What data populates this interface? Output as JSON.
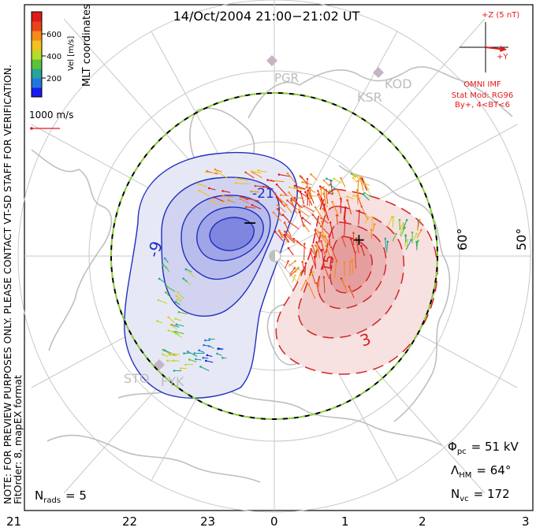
{
  "title": "14/Oct/2004 21:00−21:02 UT",
  "colorbar": {
    "unit_label": "Vel [m/s]",
    "ticks": [
      "200",
      "400",
      "600"
    ],
    "colors": [
      "#1a1af0",
      "#2277dd",
      "#27a39a",
      "#59c43a",
      "#b7dd2a",
      "#f5c020",
      "#f58a1a",
      "#e8441a",
      "#e01a1a"
    ]
  },
  "side_note_top": "MLT coordinates",
  "vertical_note": "NOTE: FOR PREVIEW PURPOSES ONLY. PLEASE CONTACT VT-SD STAFF FOR VERIFICATION.",
  "fit_order_note": "FitOrder: 8,  mapEX format",
  "velocity_scale": "1000 m/s",
  "imf": {
    "z_label": "+Z (5 nT)",
    "y_label": "+Y",
    "source": "OMNI IMF",
    "model": "Stat Mod: RG96",
    "condition": "By+, 4<BT<6"
  },
  "stations": [
    "PGR",
    "KSR",
    "KOD",
    "STO",
    "FYK"
  ],
  "latitude_labels": [
    "60°",
    "50°"
  ],
  "mlt_labels": [
    "21",
    "22",
    "23",
    "0",
    "1",
    "2",
    "3"
  ],
  "cell_signs": {
    "negative": "−",
    "positive": "+"
  },
  "contour_labels": [
    "-21",
    "-9",
    "15",
    "3"
  ],
  "stats": {
    "phi_label": "Φ",
    "phi_sub": "pc",
    "phi_value": "= 51 kV",
    "lambda_label": "Λ",
    "lambda_sub": "HM",
    "lambda_value": "= 64°",
    "nvc_label": "N",
    "nvc_sub": "vc",
    "nvc_value": "= 172",
    "nrads_label": "N",
    "nrads_sub": "rads",
    "nrads_value": "= 5"
  },
  "colors": {
    "negative_cell": "#1f2fbf",
    "positive_cell": "#d42424",
    "coast": "#bfbfbf",
    "grid": "#c8c8c8",
    "imf": "#e01a1a",
    "boundary_green": "#8acd3a"
  }
}
